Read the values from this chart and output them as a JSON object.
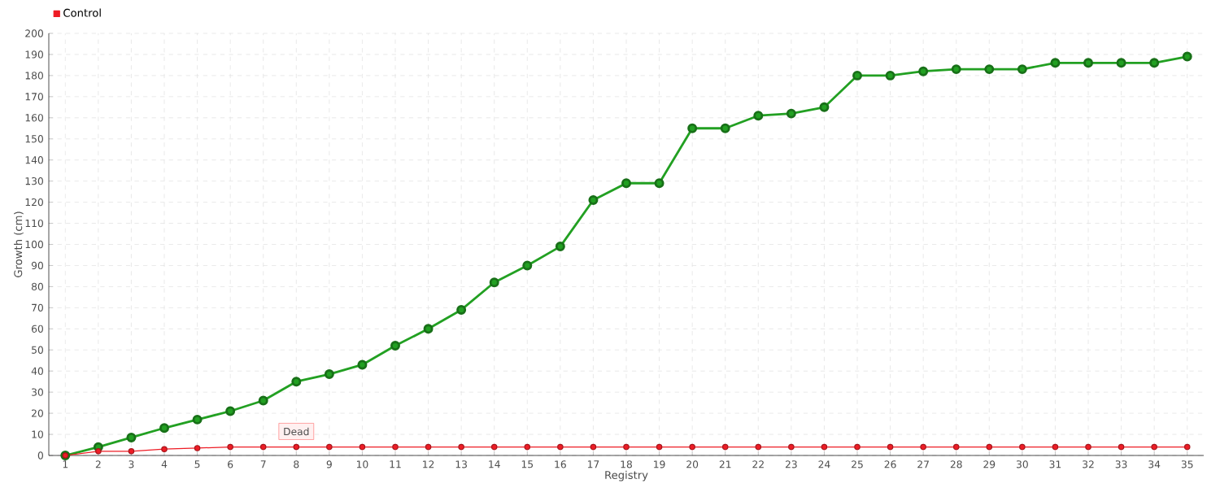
{
  "chart_data": {
    "type": "line",
    "xlabel": "Registry",
    "ylabel": "Growth (cm)",
    "categories": [
      "1",
      "2",
      "3",
      "4",
      "5",
      "6",
      "7",
      "8",
      "9",
      "10",
      "11",
      "12",
      "13",
      "14",
      "15",
      "16",
      "17",
      "18",
      "19",
      "20",
      "21",
      "22",
      "23",
      "24",
      "25",
      "26",
      "27",
      "28",
      "29",
      "30",
      "31",
      "32",
      "33",
      "34",
      "35"
    ],
    "series": [
      {
        "color": "#22a022",
        "values": [
          0,
          4,
          8.5,
          13,
          17,
          21,
          26,
          35,
          38.5,
          43,
          52,
          60,
          69,
          82,
          90,
          99,
          121,
          129,
          129,
          155,
          155,
          161,
          162,
          165,
          180,
          180,
          182,
          183,
          183,
          183,
          186,
          186,
          186,
          186,
          189
        ]
      },
      {
        "name": "Control",
        "color": "#ee1c25",
        "values": [
          0,
          2,
          2,
          3,
          3.5,
          4,
          4,
          4,
          4,
          4,
          4,
          4,
          4,
          4,
          4,
          4,
          4,
          4,
          4,
          4,
          4,
          4,
          4,
          4,
          4,
          4,
          4,
          4,
          4,
          4,
          4,
          4,
          4,
          4,
          4
        ]
      }
    ],
    "ylim": [
      0,
      200
    ],
    "yticks": [
      0,
      10,
      20,
      30,
      40,
      50,
      60,
      70,
      80,
      90,
      100,
      110,
      120,
      130,
      140,
      150,
      160,
      170,
      180,
      190,
      200
    ],
    "grid": true,
    "legend": "top left",
    "marker": "circle",
    "line_style": "solid",
    "annotations": [
      {
        "text": "Dead",
        "x": "8",
        "y": 4
      }
    ]
  }
}
